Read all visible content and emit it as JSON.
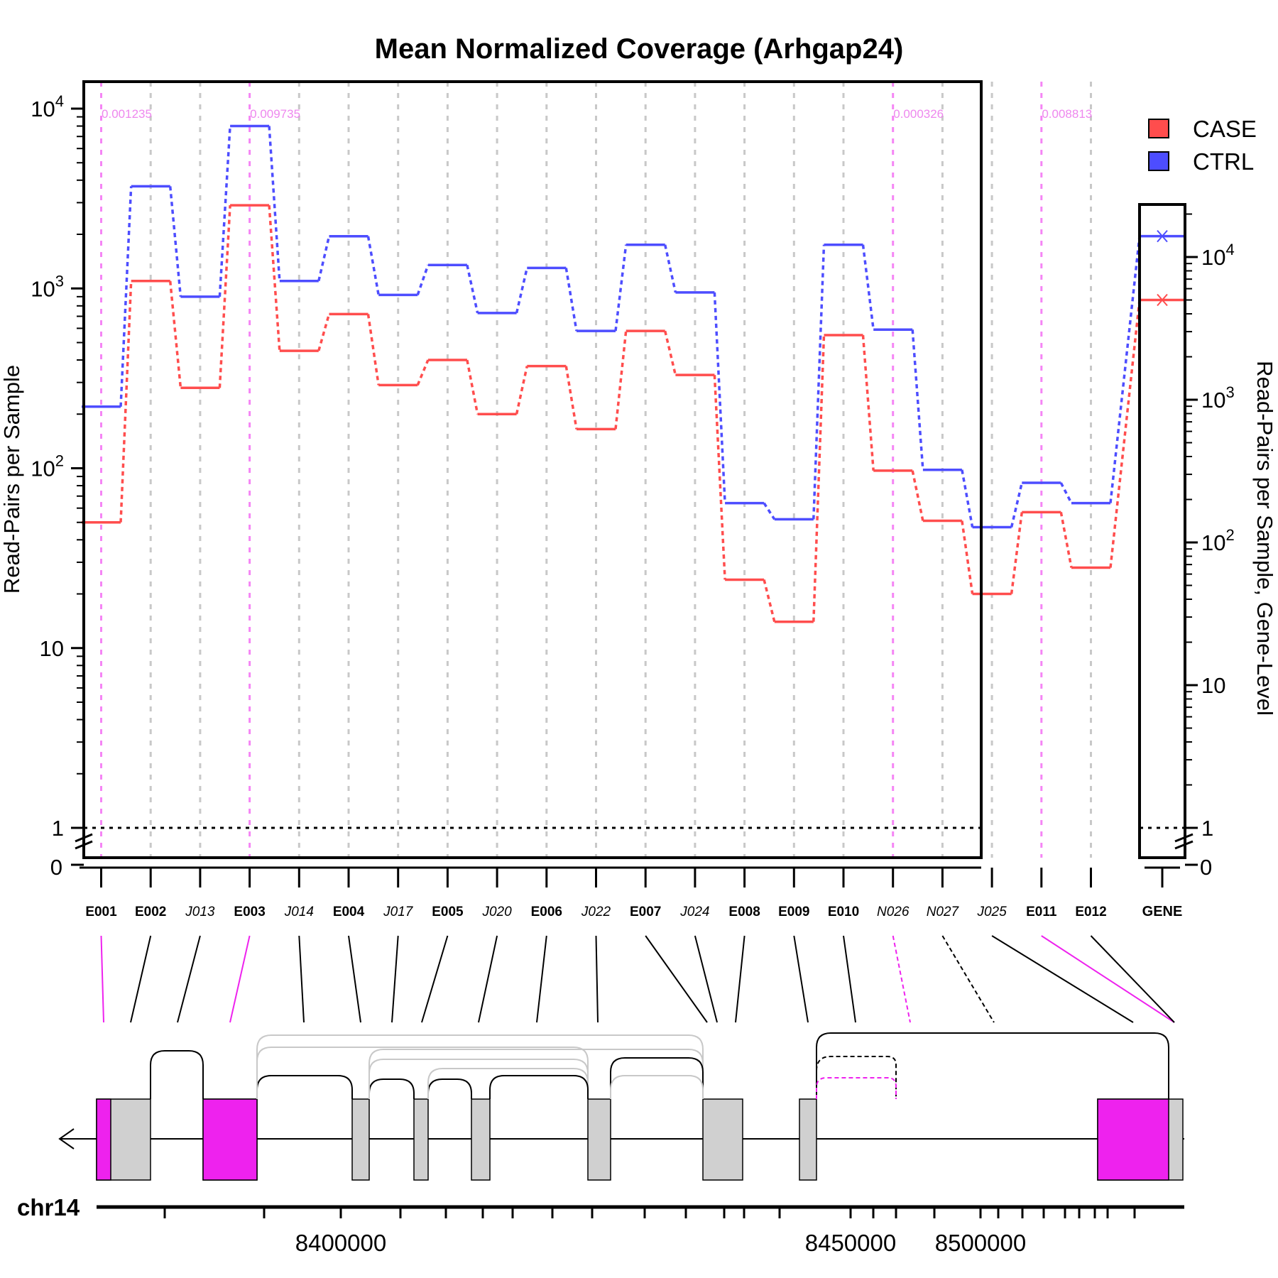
{
  "chart_data": {
    "type": "line",
    "title": "Mean Normalized Coverage (Arhgap24)",
    "ylabel": "Read-Pairs per Sample",
    "ylabel_right": "Read-Pairs per Sample, Gene-Level",
    "yscale": "log",
    "ylim": [
      1,
      10000
    ],
    "y_ticks": [
      {
        "value": 10000,
        "label": "10",
        "sup": "4"
      },
      {
        "value": 1000,
        "label": "10",
        "sup": "3"
      },
      {
        "value": 100,
        "label": "10",
        "sup": "2"
      },
      {
        "value": 10,
        "label": "10",
        "sup": ""
      },
      {
        "value": 1,
        "label": "1",
        "sup": ""
      }
    ],
    "y_zero_label": "0",
    "right_ylim": [
      1,
      20000
    ],
    "right_y_ticks": [
      {
        "value": 10000,
        "label": "10",
        "sup": "4"
      },
      {
        "value": 1000,
        "label": "10",
        "sup": "3"
      },
      {
        "value": 100,
        "label": "10",
        "sup": "2"
      },
      {
        "value": 10,
        "label": "10",
        "sup": ""
      },
      {
        "value": 1,
        "label": "1",
        "sup": ""
      }
    ],
    "right_zero_label": "0",
    "legend": {
      "placement": "top-right",
      "entries": [
        {
          "name": "CASE",
          "color": "#ff4d4d"
        },
        {
          "name": "CTRL",
          "color": "#4d4dff"
        }
      ]
    },
    "features": [
      {
        "id": "E001",
        "italic": false,
        "highlight": true
      },
      {
        "id": "E002",
        "italic": false,
        "highlight": false
      },
      {
        "id": "J013",
        "italic": true,
        "highlight": false
      },
      {
        "id": "E003",
        "italic": false,
        "highlight": true
      },
      {
        "id": "J014",
        "italic": true,
        "highlight": false
      },
      {
        "id": "E004",
        "italic": false,
        "highlight": false
      },
      {
        "id": "J017",
        "italic": true,
        "highlight": false
      },
      {
        "id": "E005",
        "italic": false,
        "highlight": false
      },
      {
        "id": "J020",
        "italic": true,
        "highlight": false
      },
      {
        "id": "E006",
        "italic": false,
        "highlight": false
      },
      {
        "id": "J022",
        "italic": true,
        "highlight": false
      },
      {
        "id": "E007",
        "italic": false,
        "highlight": false
      },
      {
        "id": "J024",
        "italic": true,
        "highlight": false
      },
      {
        "id": "E008",
        "italic": false,
        "highlight": false
      },
      {
        "id": "E009",
        "italic": false,
        "highlight": false
      },
      {
        "id": "E010",
        "italic": false,
        "highlight": false
      },
      {
        "id": "N026",
        "italic": true,
        "highlight": true
      },
      {
        "id": "N027",
        "italic": true,
        "highlight": false
      },
      {
        "id": "J025",
        "italic": true,
        "highlight": false
      },
      {
        "id": "E011",
        "italic": false,
        "highlight": true
      },
      {
        "id": "E012",
        "italic": false,
        "highlight": false
      }
    ],
    "series": [
      {
        "name": "CASE",
        "color": "#ff4d4d",
        "values": [
          50,
          1100,
          280,
          2900,
          450,
          720,
          290,
          400,
          200,
          370,
          165,
          580,
          330,
          24,
          14,
          550,
          97,
          51,
          20,
          57,
          28
        ]
      },
      {
        "name": "CTRL",
        "color": "#4d4dff",
        "values": [
          220,
          3700,
          900,
          8000,
          1100,
          1950,
          920,
          1350,
          730,
          1300,
          580,
          1750,
          950,
          64,
          52,
          1750,
          590,
          98,
          47,
          83,
          64
        ]
      }
    ],
    "pvalue_annotations": [
      {
        "feature": "E001",
        "text": "0.001235"
      },
      {
        "feature": "E003",
        "text": "0.009735"
      },
      {
        "feature": "N026",
        "text": "0.000326"
      },
      {
        "feature": "E011",
        "text": "0.008813"
      }
    ],
    "gene_level": {
      "label": "GENE",
      "values": [
        {
          "name": "CASE",
          "value": 5000,
          "color": "#ff4d4d"
        },
        {
          "name": "CTRL",
          "value": 14000,
          "color": "#4d4dff"
        }
      ]
    },
    "reference_line": 1,
    "gene_model": {
      "chromosome": "chr14",
      "axis_labels": [
        "8400000",
        "8450000",
        "8500000"
      ],
      "strand": "minus"
    },
    "highlight_color": "#ee22ee",
    "grid": true
  }
}
